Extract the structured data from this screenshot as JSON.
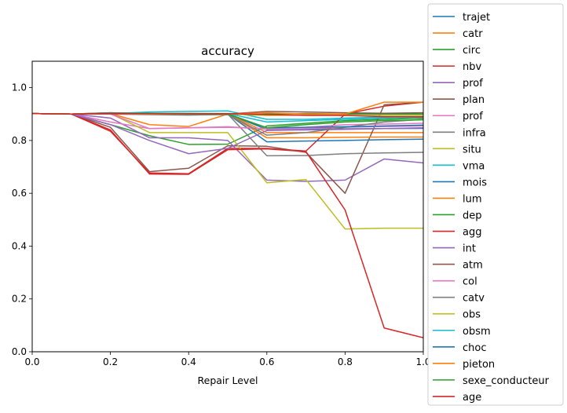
{
  "chart_data": {
    "type": "line",
    "title": "accuracy",
    "xlabel": "Repair Level",
    "ylabel": "",
    "xlim": [
      0,
      1.0
    ],
    "ylim": [
      0,
      1.1
    ],
    "xticks": [
      0.0,
      0.2,
      0.4,
      0.6,
      0.8,
      1.0
    ],
    "xtick_labels": [
      "0.0",
      "0.2",
      "0.4",
      "0.6",
      "0.8",
      "1.0"
    ],
    "yticks": [
      0.0,
      0.2,
      0.4,
      0.6,
      0.8,
      1.0
    ],
    "ytick_labels": [
      "0.0",
      "0.2",
      "0.4",
      "0.6",
      "0.8",
      "1.0"
    ],
    "grid": false,
    "legend_position": "right, outside plot",
    "x": [
      0,
      0.1,
      0.2,
      0.3,
      0.4,
      0.5,
      0.6,
      0.7,
      0.8,
      0.9,
      1.0
    ],
    "series": [
      {
        "name": "trajet",
        "color": "#1f77b4",
        "values": [
          0.902,
          0.9,
          0.902,
          0.902,
          0.901,
          0.9,
          0.842,
          0.843,
          0.844,
          0.845,
          0.846
        ]
      },
      {
        "name": "catr",
        "color": "#ff7f0e",
        "values": [
          0.902,
          0.9,
          0.902,
          0.86,
          0.853,
          0.9,
          0.83,
          0.83,
          0.83,
          0.83,
          0.83
        ]
      },
      {
        "name": "circ",
        "color": "#2ca02c",
        "values": [
          0.902,
          0.9,
          0.86,
          0.818,
          0.785,
          0.786,
          0.855,
          0.865,
          0.875,
          0.88,
          0.885
        ]
      },
      {
        "name": "nbv",
        "color": "#d62728",
        "values": [
          0.902,
          0.9,
          0.835,
          0.677,
          0.674,
          0.77,
          0.77,
          0.76,
          0.9,
          0.93,
          0.945
        ]
      },
      {
        "name": "prof",
        "color": "#9467bd",
        "values": [
          0.902,
          0.9,
          0.885,
          0.81,
          0.81,
          0.8,
          0.65,
          0.645,
          0.65,
          0.73,
          0.715
        ]
      },
      {
        "name": "plan",
        "color": "#8c564b",
        "values": [
          0.902,
          0.9,
          0.85,
          0.682,
          0.695,
          0.78,
          0.778,
          0.755,
          0.6,
          0.935,
          0.945
        ]
      },
      {
        "name": "prof",
        "color": "#e377c2",
        "values": [
          0.902,
          0.9,
          0.87,
          0.845,
          0.848,
          0.852,
          0.843,
          0.845,
          0.85,
          0.853,
          0.855
        ]
      },
      {
        "name": "infra",
        "color": "#7f7f7f",
        "values": [
          0.902,
          0.9,
          0.9,
          0.9,
          0.9,
          0.9,
          0.742,
          0.743,
          0.75,
          0.753,
          0.755
        ]
      },
      {
        "name": "situ",
        "color": "#bcbd22",
        "values": [
          0.902,
          0.9,
          0.902,
          0.83,
          0.83,
          0.83,
          0.64,
          0.652,
          0.465,
          0.468,
          0.468
        ]
      },
      {
        "name": "vma",
        "color": "#17becf",
        "values": [
          0.902,
          0.9,
          0.902,
          0.908,
          0.91,
          0.912,
          0.88,
          0.88,
          0.885,
          0.888,
          0.89
        ]
      },
      {
        "name": "mois",
        "color": "#1f77b4",
        "values": [
          0.902,
          0.9,
          0.902,
          0.902,
          0.9,
          0.9,
          0.795,
          0.798,
          0.8,
          0.803,
          0.805
        ]
      },
      {
        "name": "lum",
        "color": "#ff7f0e",
        "values": [
          0.902,
          0.9,
          0.902,
          0.902,
          0.9,
          0.9,
          0.81,
          0.81,
          0.812,
          0.813,
          0.813
        ]
      },
      {
        "name": "dep",
        "color": "#2ca02c",
        "values": [
          0.902,
          0.9,
          0.905,
          0.902,
          0.9,
          0.898,
          0.9,
          0.902,
          0.9,
          0.9,
          0.9
        ]
      },
      {
        "name": "agg",
        "color": "#d62728",
        "values": [
          0.902,
          0.9,
          0.84,
          0.673,
          0.672,
          0.765,
          0.768,
          0.758,
          0.537,
          0.09,
          0.053
        ]
      },
      {
        "name": "int",
        "color": "#9467bd",
        "values": [
          0.902,
          0.9,
          0.86,
          0.8,
          0.75,
          0.77,
          0.838,
          0.84,
          0.842,
          0.845,
          0.848
        ]
      },
      {
        "name": "atm",
        "color": "#8c564b",
        "values": [
          0.902,
          0.9,
          0.905,
          0.902,
          0.9,
          0.9,
          0.91,
          0.908,
          0.905,
          0.903,
          0.905
        ]
      },
      {
        "name": "col",
        "color": "#e377c2",
        "values": [
          0.902,
          0.9,
          0.9,
          0.845,
          0.848,
          0.85,
          0.845,
          0.85,
          0.86,
          0.862,
          0.865
        ]
      },
      {
        "name": "catv",
        "color": "#7f7f7f",
        "values": [
          0.902,
          0.9,
          0.9,
          0.898,
          0.896,
          0.898,
          0.82,
          0.83,
          0.85,
          0.87,
          0.88
        ]
      },
      {
        "name": "obs",
        "color": "#bcbd22",
        "values": [
          0.902,
          0.9,
          0.902,
          0.9,
          0.9,
          0.9,
          0.895,
          0.896,
          0.895,
          0.895,
          0.895
        ]
      },
      {
        "name": "obsm",
        "color": "#17becf",
        "values": [
          0.902,
          0.9,
          0.903,
          0.903,
          0.902,
          0.902,
          0.87,
          0.875,
          0.88,
          0.885,
          0.888
        ]
      },
      {
        "name": "choc",
        "color": "#1f77b4",
        "values": [
          0.902,
          0.9,
          0.902,
          0.902,
          0.902,
          0.9,
          0.848,
          0.85,
          0.852,
          0.855,
          0.858
        ]
      },
      {
        "name": "pieton",
        "color": "#ff7f0e",
        "values": [
          0.902,
          0.9,
          0.902,
          0.902,
          0.902,
          0.9,
          0.905,
          0.9,
          0.9,
          0.945,
          0.945
        ]
      },
      {
        "name": "sexe_conducteur",
        "color": "#2ca02c",
        "values": [
          0.902,
          0.9,
          0.902,
          0.902,
          0.9,
          0.9,
          0.848,
          0.86,
          0.87,
          0.875,
          0.878
        ]
      },
      {
        "name": "age",
        "color": "#d62728",
        "values": [
          0.902,
          0.9,
          0.902,
          0.902,
          0.902,
          0.902,
          0.898,
          0.895,
          0.895,
          0.89,
          0.89
        ]
      }
    ]
  }
}
